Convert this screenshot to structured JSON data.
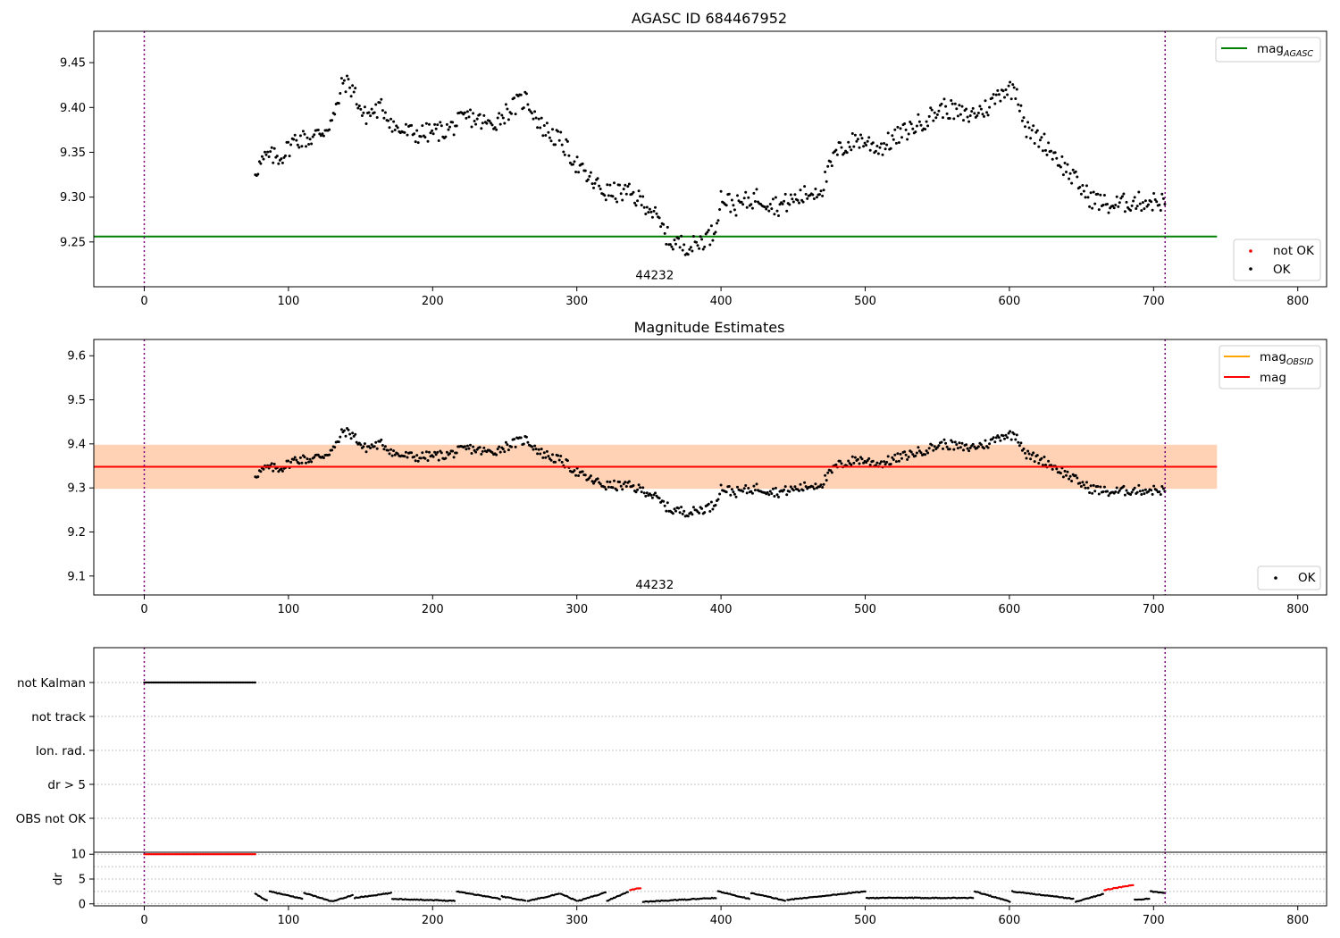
{
  "chart_data": [
    {
      "type": "scatter",
      "title": "AGASC ID 684467952",
      "xlim": [
        -35,
        820
      ],
      "ylim": [
        9.2,
        9.485
      ],
      "x_ticks": [
        "0",
        "100",
        "200",
        "300",
        "400",
        "500",
        "600",
        "700",
        "800"
      ],
      "y_ticks": [
        "9.25",
        "9.30",
        "9.35",
        "9.40",
        "9.45"
      ],
      "series": [
        {
          "name": "OK",
          "color": "#000000",
          "marker": "dot"
        },
        {
          "name": "not OK",
          "color": "#ff0000",
          "marker": "dot"
        }
      ],
      "points_x_range": [
        77,
        708
      ],
      "anchors": [
        [
          77,
          9.33
        ],
        [
          85,
          9.345
        ],
        [
          95,
          9.345
        ],
        [
          105,
          9.365
        ],
        [
          115,
          9.365
        ],
        [
          125,
          9.375
        ],
        [
          132,
          9.39
        ],
        [
          138,
          9.43
        ],
        [
          145,
          9.42
        ],
        [
          152,
          9.39
        ],
        [
          165,
          9.4
        ],
        [
          175,
          9.375
        ],
        [
          190,
          9.37
        ],
        [
          210,
          9.375
        ],
        [
          225,
          9.39
        ],
        [
          240,
          9.38
        ],
        [
          255,
          9.4
        ],
        [
          265,
          9.41
        ],
        [
          275,
          9.38
        ],
        [
          290,
          9.36
        ],
        [
          305,
          9.325
        ],
        [
          320,
          9.305
        ],
        [
          335,
          9.305
        ],
        [
          350,
          9.29
        ],
        [
          365,
          9.25
        ],
        [
          380,
          9.245
        ],
        [
          395,
          9.26
        ],
        [
          400,
          9.3
        ],
        [
          410,
          9.29
        ],
        [
          425,
          9.3
        ],
        [
          440,
          9.29
        ],
        [
          455,
          9.3
        ],
        [
          470,
          9.31
        ],
        [
          480,
          9.35
        ],
        [
          495,
          9.365
        ],
        [
          510,
          9.355
        ],
        [
          525,
          9.37
        ],
        [
          540,
          9.385
        ],
        [
          555,
          9.4
        ],
        [
          570,
          9.39
        ],
        [
          585,
          9.4
        ],
        [
          595,
          9.42
        ],
        [
          605,
          9.42
        ],
        [
          612,
          9.375
        ],
        [
          625,
          9.36
        ],
        [
          640,
          9.33
        ],
        [
          655,
          9.3
        ],
        [
          670,
          9.29
        ],
        [
          685,
          9.295
        ],
        [
          700,
          9.295
        ],
        [
          708,
          9.295
        ]
      ],
      "hlines": [
        {
          "name": "magAGASC",
          "y": 9.256,
          "xrange": [
            -35,
            744
          ],
          "color": "#008000"
        }
      ],
      "vlines": [
        0,
        708
      ],
      "annotations": [
        {
          "text": "44232",
          "x": 354,
          "y": 9.2085
        }
      ],
      "legends": [
        {
          "position": "upper right",
          "entries": [
            {
              "label": "mag",
              "sub": "AGASC",
              "kind": "line",
              "color": "#008000"
            }
          ]
        },
        {
          "position": "lower right",
          "entries": [
            {
              "label": "not OK",
              "kind": "dot",
              "color": "#ff0000"
            },
            {
              "label": "OK",
              "kind": "dot",
              "color": "#000000"
            }
          ]
        }
      ]
    },
    {
      "type": "scatter",
      "title": "Magnitude Estimates",
      "xlim": [
        -35,
        820
      ],
      "ylim": [
        9.057,
        9.637
      ],
      "x_ticks": [
        "0",
        "100",
        "200",
        "300",
        "400",
        "500",
        "600",
        "700",
        "800"
      ],
      "y_ticks": [
        "9.1",
        "9.2",
        "9.3",
        "9.4",
        "9.5",
        "9.6"
      ],
      "series": [
        {
          "name": "OK",
          "color": "#000000",
          "marker": "dot"
        }
      ],
      "bands": [
        {
          "y": [
            9.298,
            9.398
          ],
          "xrange": [
            -35,
            744
          ],
          "color": "#ffb6c1",
          "opacity": 0.45
        },
        {
          "y": [
            9.298,
            9.398
          ],
          "xrange": [
            -35,
            744
          ],
          "color": "#ffa500",
          "opacity": 0.2
        }
      ],
      "hlines": [
        {
          "name": "mag",
          "y": 9.348,
          "xrange": [
            -35,
            744
          ],
          "color": "#ff0000"
        }
      ],
      "vlines": [
        0,
        708
      ],
      "annotations": [
        {
          "text": "44232",
          "x": 354,
          "y": 9.0715
        }
      ],
      "legends": [
        {
          "position": "upper right",
          "entries": [
            {
              "label": "mag",
              "sub": "OBSID",
              "kind": "line",
              "color": "#ffa500"
            },
            {
              "label": "mag",
              "kind": "line",
              "color": "#ff0000"
            }
          ]
        },
        {
          "position": "lower right",
          "entries": [
            {
              "label": "OK",
              "kind": "dot",
              "color": "#000000"
            }
          ]
        }
      ]
    },
    {
      "type": "scatter",
      "title": "",
      "xlim": [
        -35,
        820
      ],
      "categories": [
        "not Kalman",
        "not track",
        "Ion. rad.",
        "dr > 5",
        "OBS not OK"
      ],
      "flag_points": [
        {
          "category": "not Kalman",
          "x_range": [
            0,
            77
          ],
          "color": "#000000"
        }
      ],
      "vlines": [
        0,
        708
      ]
    },
    {
      "type": "line",
      "title": "",
      "ylabel": "dr",
      "xlim": [
        -35,
        820
      ],
      "ylim": [
        -0.4,
        10.4
      ],
      "x_ticks": [
        "0",
        "100",
        "200",
        "300",
        "400",
        "500",
        "600",
        "700",
        "800"
      ],
      "y_ticks": [
        "0",
        "5",
        "10"
      ],
      "segments": [
        {
          "x": [
            77,
            86
          ],
          "y": [
            2.0,
            0.5
          ],
          "color": "#000000"
        },
        {
          "x": [
            87,
            110
          ],
          "y": [
            2.5,
            1.0
          ],
          "color": "#000000"
        },
        {
          "x": [
            111,
            130
          ],
          "y": [
            2.2,
            0.5
          ],
          "color": "#000000"
        },
        {
          "x": [
            131,
            145
          ],
          "y": [
            0.5,
            1.8
          ],
          "color": "#000000"
        },
        {
          "x": [
            146,
            172
          ],
          "y": [
            1.2,
            2.2
          ],
          "color": "#000000"
        },
        {
          "x": [
            172,
            216
          ],
          "y": [
            1.0,
            0.6
          ],
          "color": "#000000"
        },
        {
          "x": [
            217,
            247
          ],
          "y": [
            2.5,
            1.0
          ],
          "color": "#000000"
        },
        {
          "x": [
            248,
            265
          ],
          "y": [
            1.5,
            0.6
          ],
          "color": "#000000"
        },
        {
          "x": [
            266,
            288
          ],
          "y": [
            0.6,
            2.0
          ],
          "color": "#000000"
        },
        {
          "x": [
            289,
            300
          ],
          "y": [
            2.0,
            0.6
          ],
          "color": "#000000"
        },
        {
          "x": [
            301,
            320
          ],
          "y": [
            0.6,
            2.3
          ],
          "color": "#000000"
        },
        {
          "x": [
            321,
            336
          ],
          "y": [
            0.6,
            2.5
          ],
          "color": "#000000"
        },
        {
          "x": [
            337,
            345
          ],
          "y": [
            2.8,
            3.2
          ],
          "color": "#ff0000"
        },
        {
          "x": [
            346,
            397
          ],
          "y": [
            0.4,
            1.2
          ],
          "color": "#000000"
        },
        {
          "x": [
            398,
            420
          ],
          "y": [
            2.5,
            1.0
          ],
          "color": "#000000"
        },
        {
          "x": [
            421,
            445
          ],
          "y": [
            2.2,
            0.6
          ],
          "color": "#000000"
        },
        {
          "x": [
            446,
            500
          ],
          "y": [
            0.8,
            2.5
          ],
          "color": "#000000"
        },
        {
          "x": [
            501,
            575
          ],
          "y": [
            1.2,
            1.2
          ],
          "color": "#000000"
        },
        {
          "x": [
            576,
            601
          ],
          "y": [
            2.5,
            0.4
          ],
          "color": "#000000"
        },
        {
          "x": [
            602,
            645
          ],
          "y": [
            2.5,
            1.0
          ],
          "color": "#000000"
        },
        {
          "x": [
            646,
            665
          ],
          "y": [
            0.4,
            2.0
          ],
          "color": "#000000"
        },
        {
          "x": [
            666,
            686
          ],
          "y": [
            2.8,
            3.8
          ],
          "color": "#ff0000"
        },
        {
          "x": [
            687,
            697
          ],
          "y": [
            0.8,
            1.0
          ],
          "color": "#000000"
        },
        {
          "x": [
            698,
            708
          ],
          "y": [
            2.5,
            2.2
          ],
          "color": "#000000"
        }
      ],
      "flat_points": [
        {
          "x_range": [
            0,
            77
          ],
          "y": 10,
          "color": "#ff0000"
        }
      ],
      "vlines": [
        0,
        708
      ]
    }
  ]
}
